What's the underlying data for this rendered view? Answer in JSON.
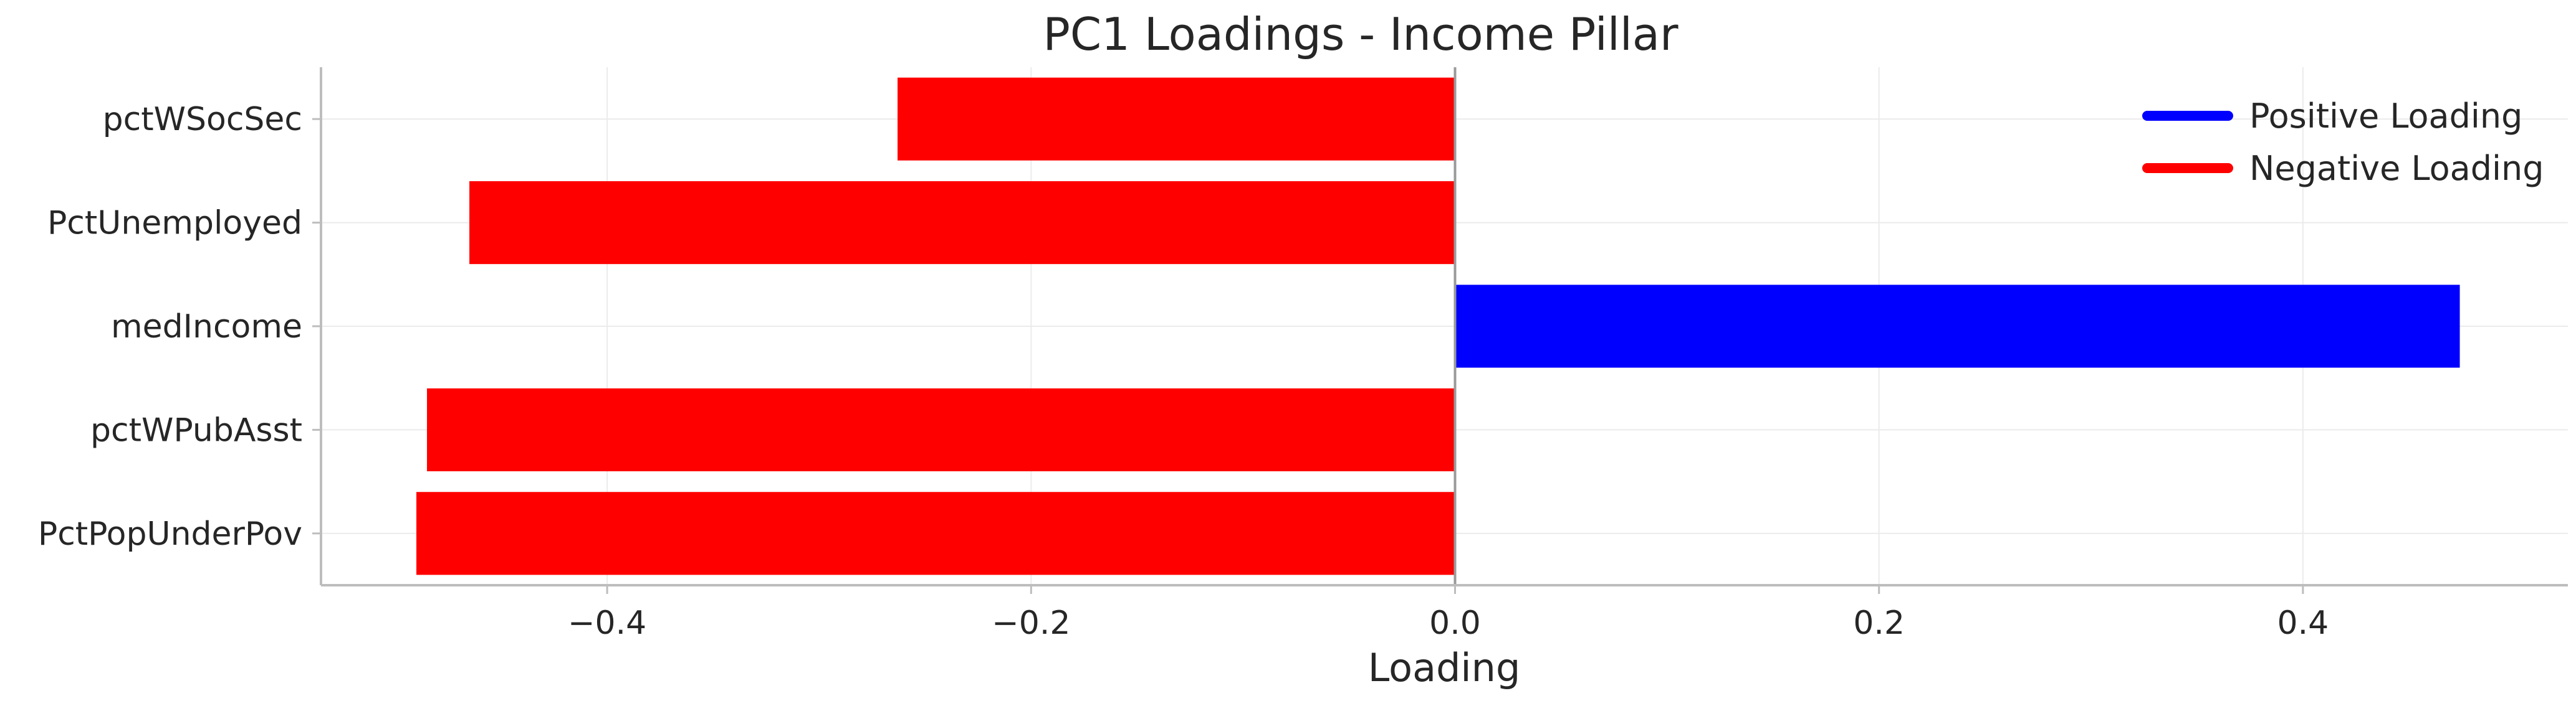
{
  "chart_data": {
    "type": "bar",
    "orientation": "horizontal",
    "title": "PC1 Loadings - Income Pillar",
    "xlabel": "Loading",
    "ylabel": "",
    "xlim": [
      -0.535,
      0.525
    ],
    "xticks": [
      -0.4,
      -0.2,
      0.0,
      0.2,
      0.4
    ],
    "xtick_labels": [
      "−0.4",
      "−0.2",
      "0.0",
      "0.2",
      "0.4"
    ],
    "categories": [
      "pctWSocSec",
      "PctUnemployed",
      "medIncome",
      "pctWPubAsst",
      "PctPopUnderPov"
    ],
    "values": [
      -0.263,
      -0.465,
      0.474,
      -0.485,
      -0.49
    ],
    "grid": true,
    "legend": {
      "placement": "top-right",
      "entries": [
        {
          "label": "Positive Loading",
          "color": "#0000ff"
        },
        {
          "label": "Negative Loading",
          "color": "#ff0000"
        }
      ]
    },
    "colors": {
      "positive": "#0000ff",
      "negative": "#ff0000"
    }
  }
}
